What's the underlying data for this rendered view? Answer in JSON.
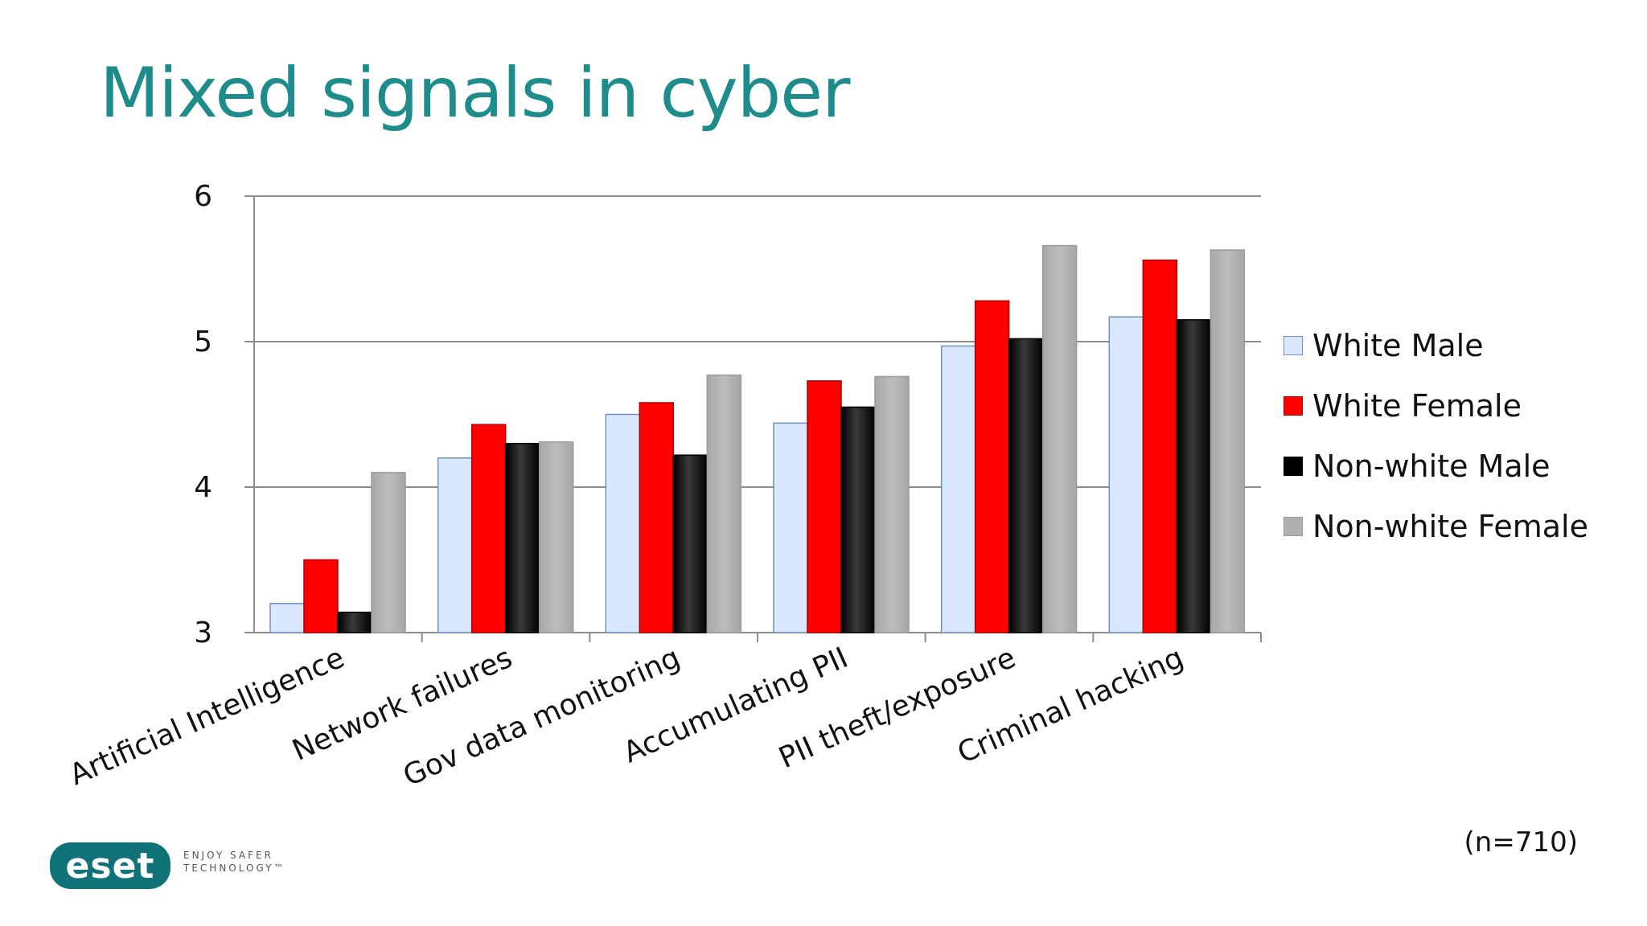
{
  "slide": {
    "title": "Mixed signals in cyber",
    "note": "(n=710)",
    "logo_text": "eset",
    "tagline_line1": "ENJOY SAFER",
    "tagline_line2": "TECHNOLOGY™"
  },
  "colors": {
    "title": "#1f8c8c",
    "white_male": "#d9e8ff",
    "white_female": "#ff0000",
    "nonwhite_male": "#000000",
    "nonwhite_female": "#b0b0b2",
    "logo": "#10737a"
  },
  "chart_data": {
    "type": "bar",
    "title": "",
    "xlabel": "",
    "ylabel": "",
    "ylim": [
      3,
      6
    ],
    "yticks": [
      3,
      4,
      5,
      6
    ],
    "grid": true,
    "legend_position": "right",
    "categories": [
      "Artificial Intelligence",
      "Network failures",
      "Gov data monitoring",
      "Accumulating PII",
      "PII theft/exposure",
      "Criminal hacking"
    ],
    "series": [
      {
        "name": "White Male",
        "values": [
          3.2,
          4.2,
          4.5,
          4.44,
          4.97,
          5.17
        ]
      },
      {
        "name": "White Female",
        "values": [
          3.5,
          4.43,
          4.58,
          4.73,
          5.28,
          5.56
        ]
      },
      {
        "name": "Non-white Male",
        "values": [
          3.14,
          4.3,
          4.22,
          4.55,
          5.02,
          5.15
        ]
      },
      {
        "name": "Non-white Female",
        "values": [
          4.1,
          4.31,
          4.77,
          4.76,
          5.66,
          5.63
        ]
      }
    ]
  }
}
